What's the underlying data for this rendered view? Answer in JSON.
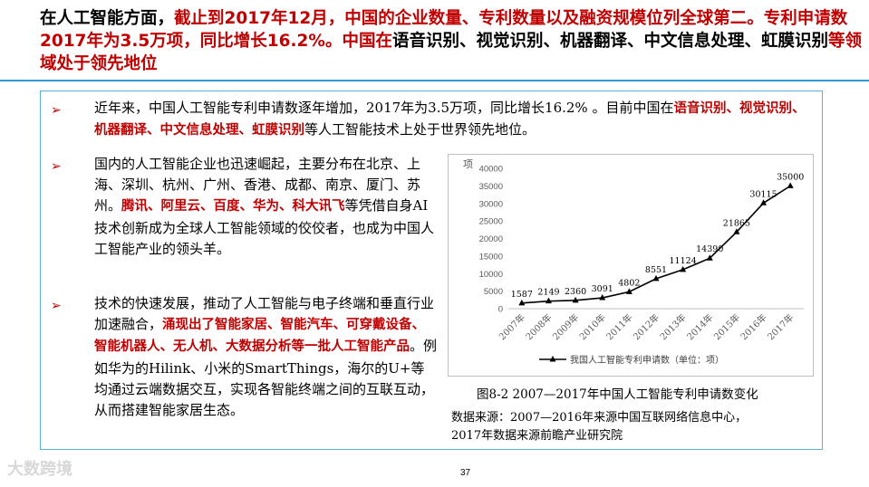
{
  "title": {
    "part1": "在人工智能方面，",
    "part2": "截止到2017年12月，中国的企业数量、专利数量以及融资规模位列全球第二。专利申请数2017年为3.5万项，同比增长16.2%。中国在",
    "part3": "语音识别、视觉识别、机器翻译、中文信息处理、虹膜识别",
    "part4": "等领域处于领先地位"
  },
  "bullets": {
    "b1": {
      "t1": "近年来，中国人工智能专利申请数逐年增加，2017年为3.5万项，同比增长16.2% 。目前中国在",
      "r1": "语音识别、视觉识别、机器翻译、中文信息处理、虹膜识别",
      "t2": "等人工智能技术上处于世界领先地位。"
    },
    "b2": {
      "t1": "国内的人工智能企业也迅速崛起，主要分布在北京、上海、深圳、杭州、广州、香港、成都、南京、厦门、苏州。",
      "r1": "腾讯、阿里云、百度、华为、科大讯飞",
      "t2": "等凭借自身AI技术创新成为全球人工智能领域的佼佼者，也成为中国人工智能产业的领头羊。"
    },
    "b3": {
      "t1": "技术的快速发展，推动了人工智能与电子终端和垂直行业加速融合，",
      "r1": "涌现出了智能家居、智能汽车、可穿戴设备、智能机器人、无人机、大数据分析等一批人工智能产品",
      "t2": "。例如华为的Hilink、小米的SmartThings，海尔的U+等均通过云端数据交互，实现各智能终端之间的互联互动，从而搭建智能家居生态。"
    }
  },
  "bullet_symbol": "➢",
  "chart_data": {
    "type": "line",
    "ylabel": "项",
    "categories": [
      "2007年",
      "2008年",
      "2009年",
      "2010年",
      "2011年",
      "2012年",
      "2013年",
      "2014年",
      "2015年",
      "2016年",
      "2017年"
    ],
    "series": [
      {
        "name": "我国人工智能专利申请数（单位：项）",
        "values": [
          1587,
          2149,
          2360,
          3091,
          4802,
          8551,
          11124,
          14390,
          21865,
          30115,
          35000
        ]
      }
    ],
    "yticks": [
      0,
      5000,
      10000,
      15000,
      20000,
      25000,
      30000,
      35000,
      40000
    ],
    "ylim": [
      0,
      40000
    ],
    "grid": false,
    "legend": "bottom",
    "data_labels": true
  },
  "caption": "图8-2  2007—2017年中国人工智能专利申请数变化",
  "source": {
    "line1": "数据来源：2007—2016年来源中国互联网络信息中心，",
    "line2": "2017年数据来源前瞻产业研究院"
  },
  "page_number": "37",
  "watermark": "大数跨境",
  "colors": {
    "red": "#c00000",
    "accent_blue": "#2e9bd6",
    "line": "#000000"
  }
}
